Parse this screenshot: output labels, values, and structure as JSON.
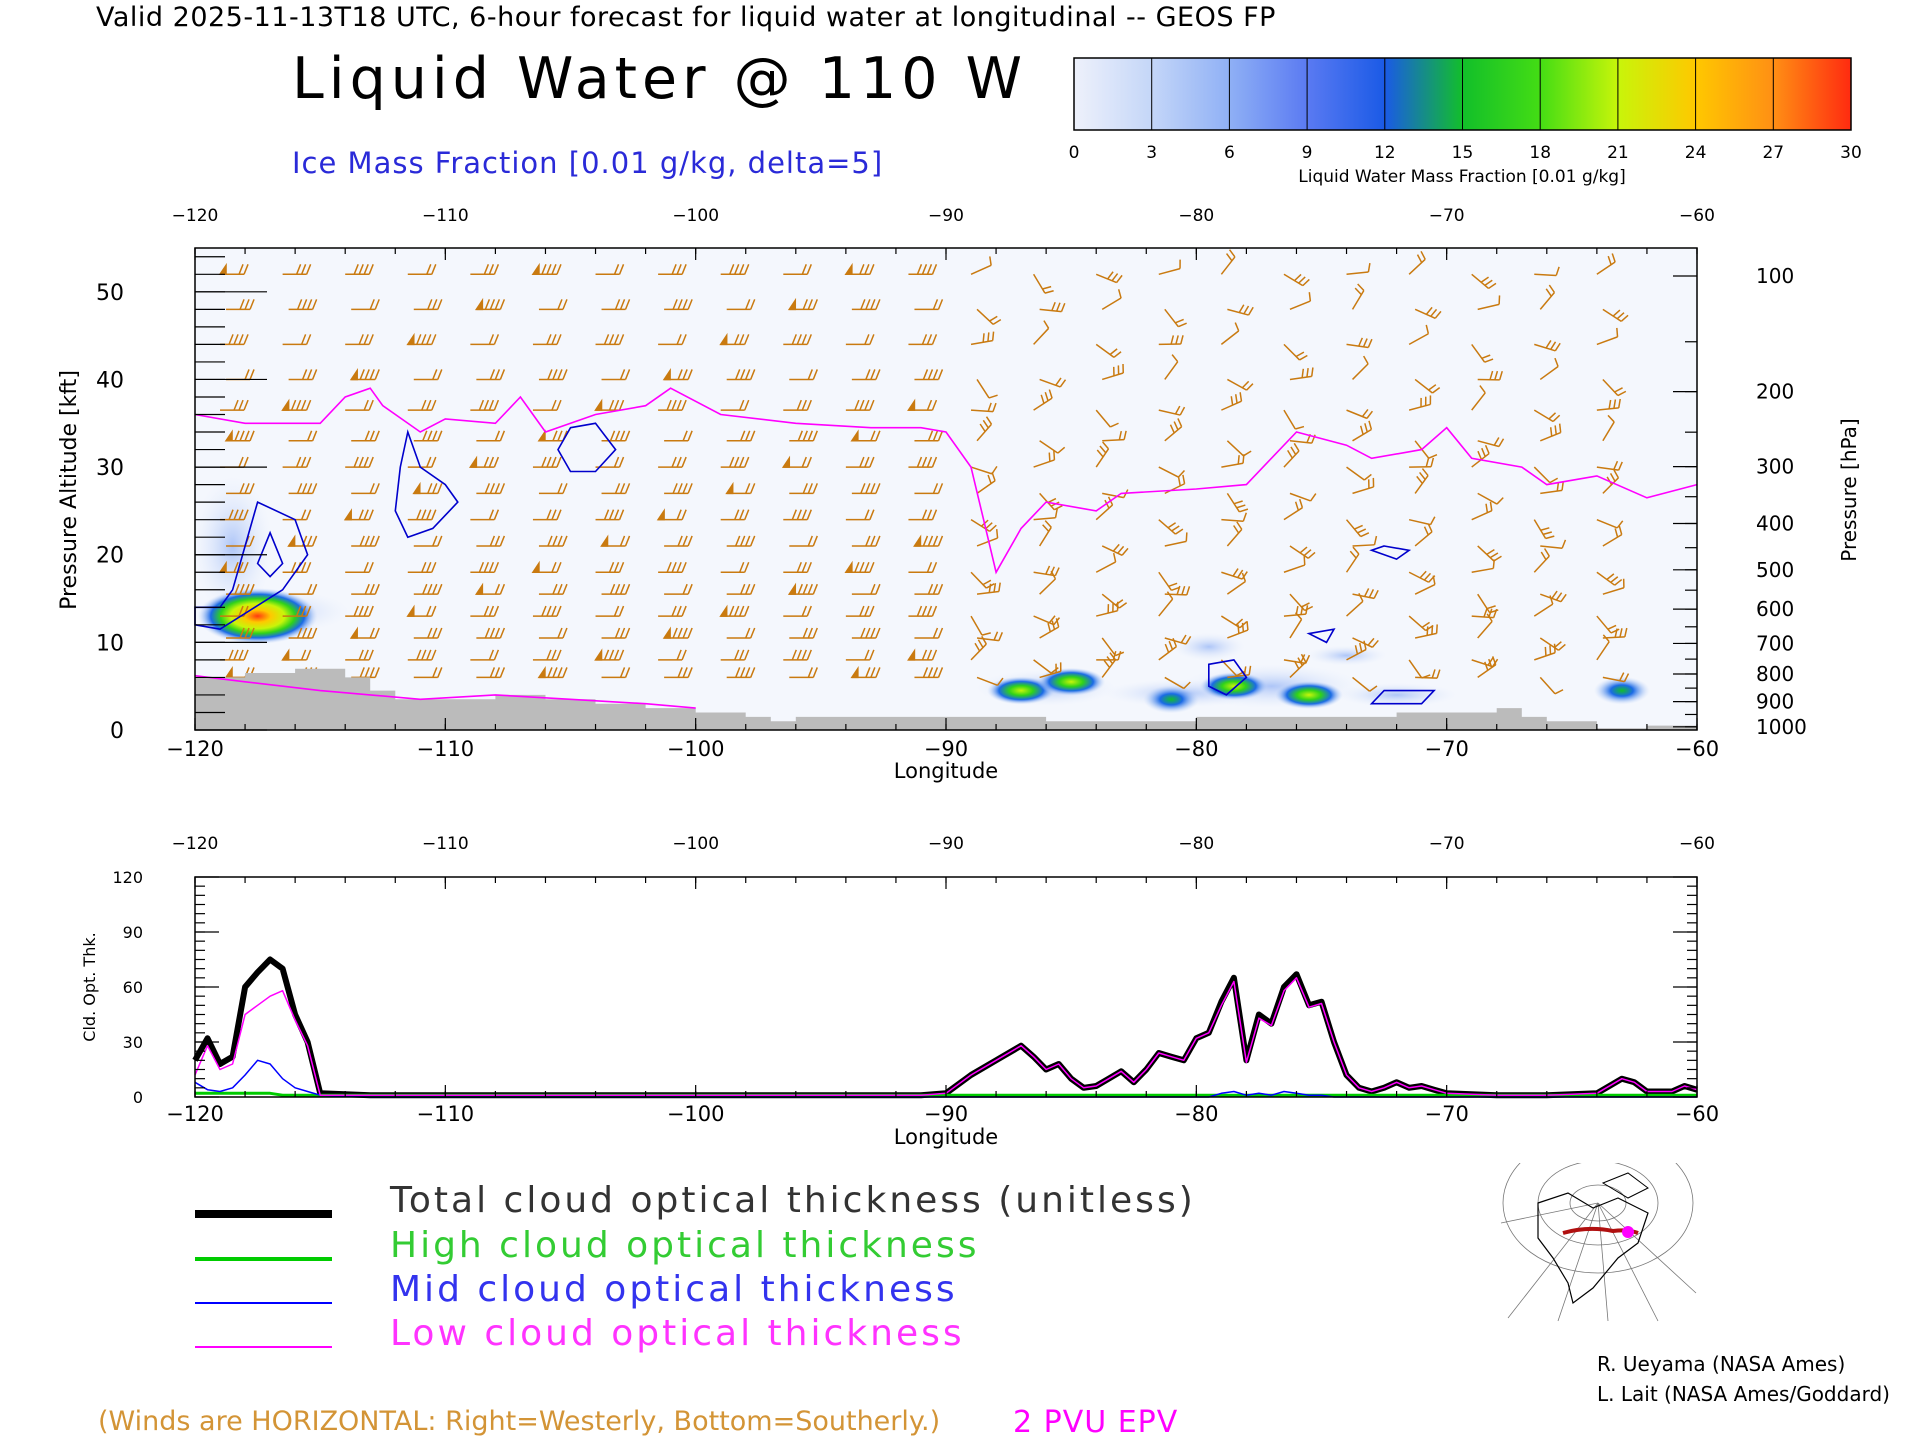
{
  "header": {
    "top_line": "Valid 2025-11-13T18 UTC, 6-hour forecast for liquid water at longitudinal -- GEOS FP",
    "title": "Liquid Water @ 110 W",
    "subtitle": "Ice Mass Fraction [0.01 g/kg, delta=5]"
  },
  "colorbar": {
    "ticks": [
      "0",
      "3",
      "6",
      "9",
      "12",
      "15",
      "18",
      "21",
      "24",
      "27",
      "30"
    ],
    "label": "Liquid Water Mass Fraction [0.01 g/kg]",
    "colors": [
      "#eef1fb",
      "#c4d6f8",
      "#8fb0f5",
      "#5a7af2",
      "#1a5ae6",
      "#12bf2a",
      "#44dd14",
      "#c8f50a",
      "#ffc800",
      "#ff8f14",
      "#ff2a10"
    ]
  },
  "top_plot": {
    "top_axis_ticks": [
      "-120",
      "-110",
      "-100",
      "-90",
      "-80",
      "-70",
      "-60"
    ],
    "bottom_axis_ticks": [
      "-120",
      "-110",
      "-100",
      "-90",
      "-80",
      "-70",
      "-60"
    ],
    "xlabel": "Longitude",
    "ylabel_left": "Pressure Altitude [kft]",
    "left_ticks": [
      "0",
      "10",
      "20",
      "30",
      "40",
      "50"
    ],
    "ylabel_right": "Pressure [hPa]",
    "right_ticks": [
      "100",
      "200",
      "300",
      "400",
      "500",
      "600",
      "700",
      "800",
      "900",
      "1000"
    ]
  },
  "bottom_plot": {
    "top_axis_ticks": [
      "-120",
      "-110",
      "-100",
      "-90",
      "-80",
      "-70",
      "-60"
    ],
    "bottom_axis_ticks": [
      "-120",
      "-110",
      "-100",
      "-90",
      "-80",
      "-70",
      "-60"
    ],
    "xlabel": "Longitude",
    "ylabel": "Cld. Opt. Thk.",
    "left_ticks": [
      "0",
      "30",
      "60",
      "90",
      "120"
    ]
  },
  "legend": {
    "total": "Total cloud optical thickness (unitless)",
    "high": "High cloud optical thickness",
    "mid": "Mid cloud optical thickness",
    "low": "Low cloud optical thickness"
  },
  "footer": {
    "credit_1": "R. Ueyama (NASA Ames)",
    "credit_2": "L. Lait (NASA Ames/Goddard)",
    "winds_note": "(Winds are HORIZONTAL: Right=Westerly, Bottom=Southerly.)",
    "epv_note": "2 PVU EPV"
  },
  "colors": {
    "total": "#000000",
    "high": "#00cc00",
    "mid": "#0000ff",
    "low": "#ff00ff",
    "wind_barbs": "#c97a10",
    "terrain": "#bbbbbb",
    "ice_contours": "#0000cc",
    "epv_line": "#ff00ff"
  },
  "chart_data": [
    {
      "type": "heatmap",
      "title": "Liquid Water @ 110 W",
      "xlabel": "Longitude",
      "ylabel": "Pressure Altitude [kft]",
      "xlim": [
        -120,
        -60
      ],
      "ylim": [
        0,
        55
      ],
      "liquid_water_blobs": [
        {
          "lon": -117.5,
          "alt_kft": 13,
          "peak": 27
        },
        {
          "lon": -87,
          "alt_kft": 4.5,
          "peak": 19
        },
        {
          "lon": -85,
          "alt_kft": 5.5,
          "peak": 15
        },
        {
          "lon": -81,
          "alt_kft": 3.5,
          "peak": 12
        },
        {
          "lon": -78.5,
          "alt_kft": 5,
          "peak": 19
        },
        {
          "lon": -75.5,
          "alt_kft": 4,
          "peak": 20
        },
        {
          "lon": -63,
          "alt_kft": 4.5,
          "peak": 9
        }
      ],
      "epv_2pvu_kft": {
        "lon": [
          -120,
          -118,
          -115,
          -114,
          -113,
          -112.5,
          -111,
          -110,
          -108,
          -107,
          -106,
          -104,
          -102,
          -101,
          -99,
          -96,
          -93,
          -91,
          -90,
          -89,
          -88.5,
          -88,
          -87,
          -86,
          -84,
          -83,
          -80,
          -78,
          -77,
          -76,
          -74,
          -73,
          -71,
          -70,
          -69,
          -67,
          -66,
          -64,
          -62,
          -60
        ],
        "alt": [
          36,
          35,
          35,
          38,
          39,
          37,
          34,
          35.5,
          35,
          38,
          34,
          36,
          37,
          39,
          36,
          35,
          34.5,
          34.5,
          34,
          30,
          24,
          18,
          23,
          26,
          25,
          27,
          27.5,
          28,
          31,
          34,
          32.5,
          31,
          32,
          34.5,
          31,
          30,
          28,
          29,
          26.5,
          28
        ]
      },
      "terrain_kft": {
        "lon": [
          -120,
          -118,
          -116,
          -114,
          -113,
          -112,
          -110,
          -108,
          -106,
          -104,
          -102,
          -100,
          -98,
          -97,
          -96,
          -94,
          -90,
          -86,
          -84,
          -82,
          -80,
          -78,
          -76,
          -74,
          -72,
          -70,
          -68,
          -67,
          -66,
          -64,
          -62,
          -60
        ],
        "alt": [
          6,
          6.5,
          7,
          6,
          4.5,
          3.5,
          3.5,
          4,
          3.5,
          3,
          2.5,
          2,
          1.5,
          1,
          1.5,
          1.5,
          1.5,
          1,
          1,
          1,
          1.5,
          1.5,
          1.5,
          1.5,
          2,
          2,
          2.5,
          1.5,
          1,
          0.2,
          0.5,
          0.5
        ]
      }
    },
    {
      "type": "line",
      "xlabel": "Longitude",
      "ylabel": "Cld. Opt. Thk.",
      "xlim": [
        -120,
        -60
      ],
      "ylim": [
        0,
        120
      ],
      "x": [
        -120,
        -119.5,
        -119,
        -118.5,
        -118,
        -117.5,
        -117,
        -116.5,
        -116,
        -115.5,
        -115,
        -113,
        -110,
        -105,
        -100,
        -95,
        -91,
        -90,
        -89,
        -88,
        -87,
        -86.5,
        -86,
        -85.5,
        -85,
        -84.5,
        -84,
        -83.5,
        -83,
        -82.5,
        -82,
        -81.5,
        -81,
        -80.5,
        -80,
        -79.5,
        -79,
        -78.5,
        -78,
        -77.5,
        -77,
        -76.5,
        -76,
        -75.5,
        -75,
        -74.5,
        -74,
        -73.5,
        -73,
        -72.5,
        -72,
        -71.5,
        -71,
        -70.5,
        -70,
        -68,
        -66,
        -64,
        -63,
        -62.5,
        -62,
        -61,
        -60.5,
        -60
      ],
      "series": [
        {
          "name": "Total cloud optical thickness (unitless)",
          "values": [
            20,
            32,
            18,
            22,
            60,
            68,
            75,
            70,
            45,
            30,
            2,
            1,
            1,
            1,
            1,
            1,
            1,
            2,
            12,
            20,
            28,
            22,
            15,
            18,
            10,
            5,
            6,
            10,
            14,
            8,
            15,
            24,
            22,
            20,
            32,
            35,
            52,
            65,
            20,
            45,
            40,
            60,
            67,
            50,
            52,
            30,
            12,
            5,
            3,
            5,
            8,
            5,
            6,
            4,
            2,
            1,
            1,
            2,
            10,
            8,
            3,
            3,
            6,
            4
          ]
        },
        {
          "name": "High cloud optical thickness",
          "values": [
            2,
            2,
            2,
            2,
            2,
            2,
            2,
            1,
            1,
            1,
            1,
            1,
            1,
            1,
            1,
            1,
            1,
            1,
            1,
            1,
            1,
            1,
            1,
            1,
            1,
            1,
            1,
            1,
            1,
            1,
            1,
            1,
            1,
            1,
            1,
            1,
            1,
            1,
            1,
            1,
            1,
            1,
            1,
            1,
            1,
            1,
            1,
            1,
            1,
            1,
            1,
            1,
            1,
            1,
            1,
            1,
            1,
            1,
            1,
            1,
            1,
            1,
            1,
            1
          ]
        },
        {
          "name": "Mid cloud optical thickness",
          "values": [
            8,
            4,
            3,
            5,
            12,
            20,
            18,
            10,
            5,
            3,
            1,
            0,
            0,
            0,
            0,
            0,
            0,
            0,
            0,
            0,
            0,
            0,
            0,
            0,
            0,
            0,
            0,
            0,
            0,
            0,
            0,
            0,
            0,
            0,
            0,
            0,
            2,
            3,
            1,
            2,
            1,
            3,
            2,
            1,
            1,
            0,
            0,
            0,
            0,
            0,
            0,
            0,
            0,
            0,
            0,
            0,
            0,
            0,
            0,
            0,
            0,
            0,
            0,
            0
          ]
        },
        {
          "name": "Low cloud optical thickness",
          "values": [
            12,
            28,
            15,
            18,
            45,
            50,
            55,
            58,
            42,
            28,
            1,
            1,
            1,
            1,
            1,
            1,
            1,
            2,
            12,
            20,
            28,
            22,
            15,
            18,
            10,
            5,
            6,
            10,
            14,
            8,
            15,
            24,
            22,
            20,
            32,
            35,
            50,
            63,
            19,
            43,
            39,
            58,
            65,
            49,
            51,
            30,
            12,
            5,
            3,
            5,
            8,
            5,
            6,
            4,
            2,
            1,
            1,
            2,
            10,
            8,
            3,
            3,
            6,
            4
          ]
        }
      ]
    }
  ]
}
